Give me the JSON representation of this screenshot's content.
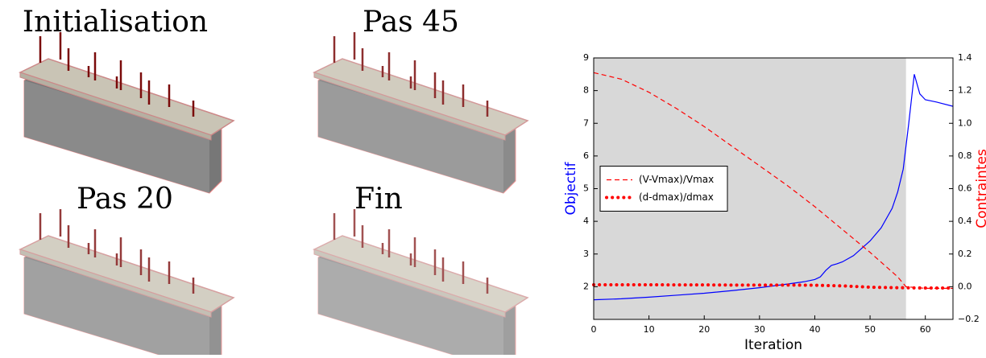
{
  "panels": [
    {
      "title": "Initialisation"
    },
    {
      "title": "Pas 45"
    },
    {
      "title": "Pas 20"
    },
    {
      "title": "Fin"
    }
  ],
  "chart_data": {
    "type": "line",
    "xlabel": "Iteration",
    "ylabel": "Objectif",
    "y2label": "Contraintes",
    "xlim": [
      0,
      65
    ],
    "xticks": [
      0,
      10,
      20,
      30,
      40,
      50,
      60
    ],
    "ylim": [
      1,
      9
    ],
    "yticks": [
      2,
      3,
      4,
      5,
      6,
      7,
      8,
      9
    ],
    "y2lim": [
      -0.2,
      1.4
    ],
    "y2ticks": [
      {
        "value": -0.2,
        "label": "−0.2"
      },
      {
        "value": 0,
        "label": "0.0"
      },
      0.2,
      0.4,
      0.6,
      0.8,
      {
        "value": 1,
        "label": "1.0"
      },
      1.2,
      1.4
    ],
    "shaded_xrange": [
      0,
      56.5
    ],
    "shade_color": "#d8d8d8",
    "legend": "center left",
    "ylabel_color": "#0000ff",
    "y2label_color": "#ff0000",
    "series": [
      {
        "color": "#0000ff",
        "style": "solid",
        "x": [
          0,
          5,
          10,
          15,
          20,
          25,
          30,
          35,
          38,
          40,
          41,
          42,
          43,
          44,
          45,
          47,
          50,
          52,
          54,
          55,
          56,
          57,
          58,
          59,
          60,
          62,
          65
        ],
        "values": [
          1.6,
          1.63,
          1.68,
          1.74,
          1.8,
          1.88,
          1.97,
          2.08,
          2.15,
          2.22,
          2.3,
          2.5,
          2.65,
          2.7,
          2.76,
          2.95,
          3.4,
          3.8,
          4.4,
          4.9,
          5.6,
          7.0,
          8.5,
          7.9,
          7.72,
          7.65,
          7.52
        ]
      },
      {
        "name": "(V-Vmax)/Vmax",
        "color": "#ff0000",
        "style": "dashed",
        "axis": "y2",
        "x": [
          0,
          5,
          10,
          15,
          20,
          25,
          30,
          35,
          40,
          45,
          50,
          55,
          56.5,
          60,
          65
        ],
        "values": [
          1.31,
          1.27,
          1.19,
          1.09,
          0.98,
          0.86,
          0.74,
          0.62,
          0.49,
          0.35,
          0.21,
          0.06,
          0.0,
          -0.01,
          -0.01
        ]
      },
      {
        "name": "(d-dmax)/dmax",
        "color": "#ff0000",
        "style": "dotted",
        "axis": "y2",
        "x": [
          0,
          5,
          10,
          15,
          20,
          25,
          30,
          35,
          40,
          45,
          50,
          55,
          60,
          65
        ],
        "values": [
          0.012,
          0.012,
          0.012,
          0.011,
          0.011,
          0.01,
          0.01,
          0.01,
          0.009,
          0.005,
          -0.003,
          -0.006,
          -0.008,
          -0.008
        ]
      }
    ]
  }
}
